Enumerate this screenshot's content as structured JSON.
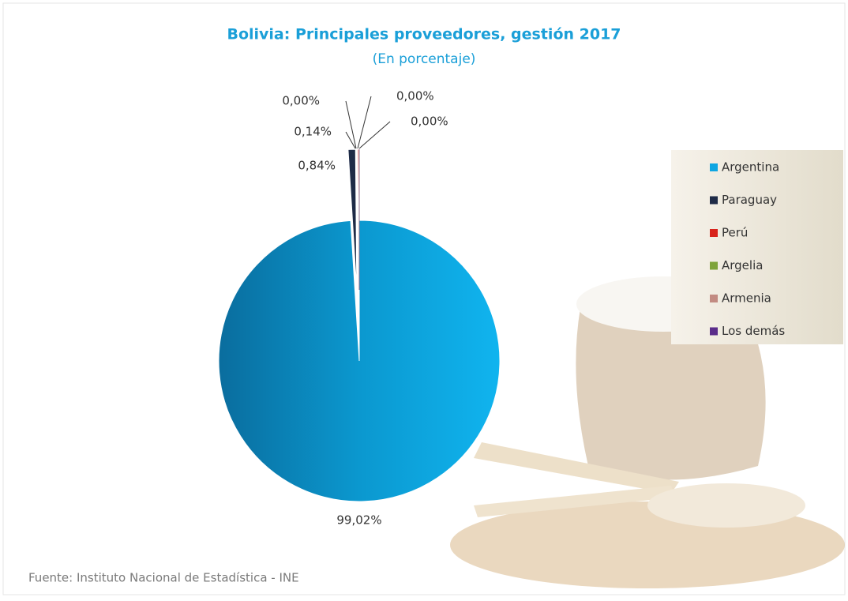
{
  "chart_data": {
    "type": "pie",
    "title": "Bolivia: Principales proveedores, gestión 2017",
    "subtitle": "(En porcentaje)",
    "source": "Fuente: Instituto Nacional de Estadística - INE",
    "categories": [
      "Argentina",
      "Paraguay",
      "Perú",
      "Argelia",
      "Armenia",
      "Los demás"
    ],
    "values": [
      99.02,
      0.84,
      0.14,
      0.0,
      0.0,
      0.0
    ],
    "value_labels": [
      "99,02%",
      "0,84%",
      "0,14%",
      "0,00%",
      "0,00%",
      "0,00%"
    ],
    "colors": [
      "#0ea6e2",
      "#1e2b47",
      "#d8231b",
      "#7ea33a",
      "#c28b82",
      "#5a2c8a"
    ],
    "legend": "right"
  }
}
